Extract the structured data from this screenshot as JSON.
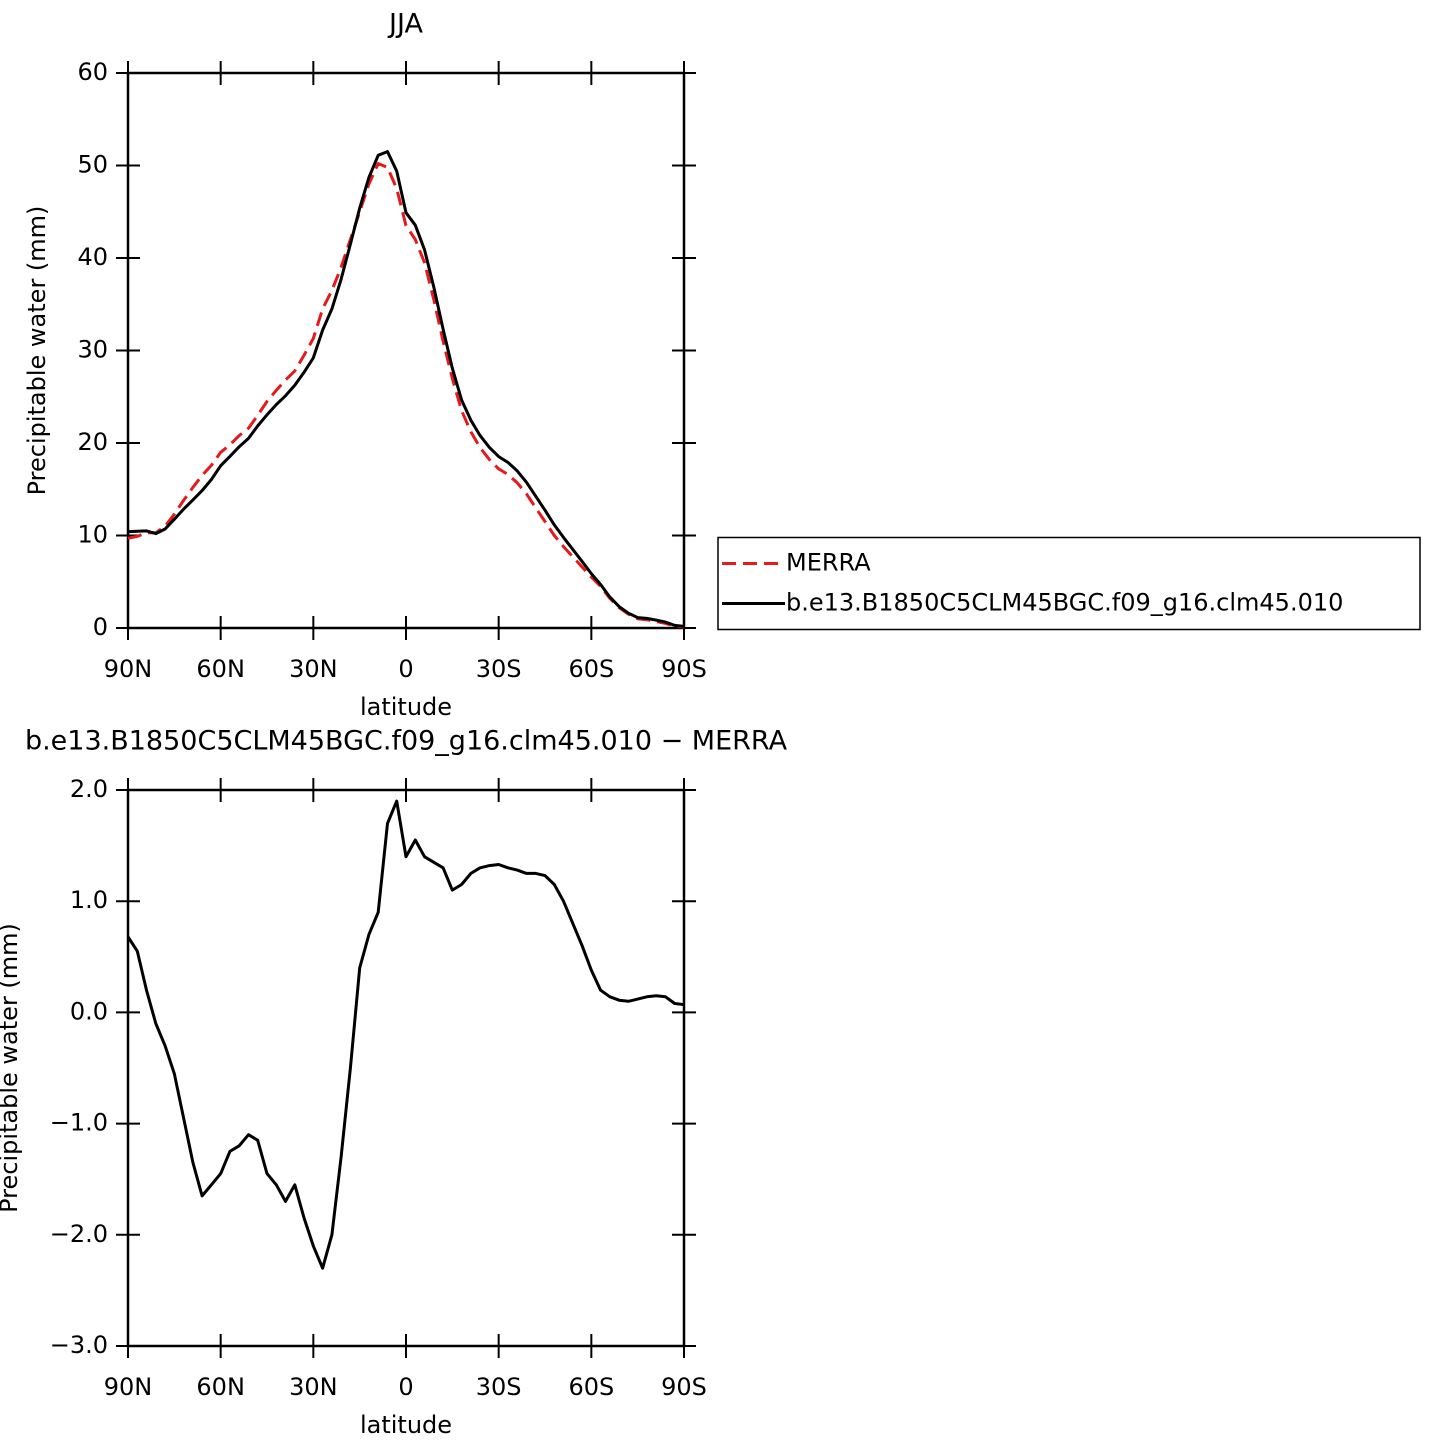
{
  "chart_data": [
    {
      "type": "line",
      "title": "JJA",
      "xlabel": "latitude",
      "ylabel": "Precipitable water (mm)",
      "x": [
        90,
        87,
        84,
        81,
        78,
        75,
        72,
        69,
        66,
        63,
        60,
        57,
        54,
        51,
        48,
        45,
        42,
        39,
        36,
        33,
        30,
        27,
        24,
        21,
        18,
        15,
        12,
        9,
        6,
        3,
        0,
        -3,
        -6,
        -9,
        -12,
        -15,
        -18,
        -21,
        -24,
        -27,
        -30,
        -33,
        -36,
        -39,
        -42,
        -45,
        -48,
        -51,
        -54,
        -57,
        -60,
        -63,
        -66,
        -69,
        -72,
        -75,
        -78,
        -81,
        -84,
        -87,
        -90
      ],
      "xlim": [
        90,
        -90
      ],
      "xticks": [
        {
          "value": 90,
          "label": "90N"
        },
        {
          "value": 60,
          "label": "60N"
        },
        {
          "value": 30,
          "label": "30N"
        },
        0,
        {
          "value": -30,
          "label": "30S"
        },
        {
          "value": -60,
          "label": "60S"
        },
        {
          "value": -90,
          "label": "90S"
        }
      ],
      "ylim": [
        0,
        60
      ],
      "yticks": [
        0,
        10,
        20,
        30,
        40,
        50,
        60
      ],
      "legend": "right",
      "series": [
        {
          "name": "MERRA",
          "color": "#e41a1c",
          "linestyle": "dashed",
          "values": [
            9.7,
            9.9,
            10.3,
            10.3,
            11.0,
            12.3,
            13.8,
            15.2,
            16.5,
            17.6,
            19.0,
            19.8,
            20.8,
            21.6,
            23.0,
            24.5,
            25.7,
            26.8,
            27.8,
            29.5,
            31.3,
            34.5,
            36.5,
            39.0,
            42.0,
            45.0,
            48.0,
            50.2,
            49.8,
            47.5,
            43.5,
            42.0,
            39.5,
            35.5,
            31.0,
            27.0,
            23.5,
            21.2,
            19.5,
            18.2,
            17.2,
            16.6,
            15.7,
            14.5,
            13.0,
            11.5,
            10.0,
            8.8,
            7.7,
            6.6,
            5.5,
            4.5,
            3.2,
            2.2,
            1.5,
            1.0,
            0.9,
            0.7,
            0.5,
            0.2,
            0.1
          ]
        },
        {
          "name": "b.e13.B1850C5CLM45BGC.f09_g16.clm45.010",
          "color": "#000000",
          "linestyle": "solid",
          "values": [
            10.4,
            10.45,
            10.5,
            10.2,
            10.7,
            11.75,
            12.85,
            13.85,
            14.85,
            16.05,
            17.55,
            18.55,
            19.6,
            20.5,
            21.85,
            23.05,
            24.15,
            25.1,
            26.25,
            27.65,
            29.2,
            32.2,
            34.5,
            37.7,
            41.5,
            45.4,
            48.7,
            51.1,
            51.5,
            49.4,
            44.9,
            43.55,
            40.9,
            36.85,
            32.3,
            28.1,
            24.65,
            22.45,
            20.8,
            19.52,
            18.53,
            17.9,
            16.98,
            15.75,
            14.25,
            12.73,
            11.15,
            9.8,
            8.5,
            7.2,
            5.88,
            4.7,
            3.34,
            2.31,
            1.6,
            1.12,
            1.04,
            0.85,
            0.64,
            0.28,
            0.17
          ]
        }
      ]
    },
    {
      "type": "line",
      "title": "b.e13.B1850C5CLM45BGC.f09_g16.clm45.010 − MERRA",
      "xlabel": "latitude",
      "ylabel": "Precipitable water (mm)",
      "x": [
        90,
        87,
        84,
        81,
        78,
        75,
        72,
        69,
        66,
        63,
        60,
        57,
        54,
        51,
        48,
        45,
        42,
        39,
        36,
        33,
        30,
        27,
        24,
        21,
        18,
        15,
        12,
        9,
        6,
        3,
        0,
        -3,
        -6,
        -9,
        -12,
        -15,
        -18,
        -21,
        -24,
        -27,
        -30,
        -33,
        -36,
        -39,
        -42,
        -45,
        -48,
        -51,
        -54,
        -57,
        -60,
        -63,
        -66,
        -69,
        -72,
        -75,
        -78,
        -81,
        -84,
        -87,
        -90
      ],
      "xlim": [
        90,
        -90
      ],
      "xticks": [
        {
          "value": 90,
          "label": "90N"
        },
        {
          "value": 60,
          "label": "60N"
        },
        {
          "value": 30,
          "label": "30N"
        },
        0,
        {
          "value": -30,
          "label": "30S"
        },
        {
          "value": -60,
          "label": "60S"
        },
        {
          "value": -90,
          "label": "90S"
        }
      ],
      "ylim": [
        -3,
        2
      ],
      "yticks": [
        {
          "value": -3,
          "label": "−3.0"
        },
        {
          "value": -2,
          "label": "−2.0"
        },
        {
          "value": -1,
          "label": "−1.0"
        },
        {
          "value": 0,
          "label": "0.0"
        },
        {
          "value": 1,
          "label": "1.0"
        },
        {
          "value": 2,
          "label": "2.0"
        }
      ],
      "color": "#000000",
      "values": [
        0.68,
        0.55,
        0.2,
        -0.1,
        -0.3,
        -0.55,
        -0.95,
        -1.35,
        -1.65,
        -1.55,
        -1.45,
        -1.25,
        -1.2,
        -1.1,
        -1.15,
        -1.45,
        -1.55,
        -1.7,
        -1.55,
        -1.85,
        -2.1,
        -2.3,
        -2.0,
        -1.3,
        -0.5,
        0.4,
        0.7,
        0.9,
        1.7,
        1.9,
        1.4,
        1.55,
        1.4,
        1.35,
        1.3,
        1.1,
        1.15,
        1.25,
        1.3,
        1.32,
        1.33,
        1.3,
        1.28,
        1.25,
        1.25,
        1.23,
        1.15,
        1.0,
        0.8,
        0.6,
        0.38,
        0.2,
        0.14,
        0.11,
        0.1,
        0.12,
        0.14,
        0.15,
        0.14,
        0.08,
        0.07
      ]
    }
  ]
}
